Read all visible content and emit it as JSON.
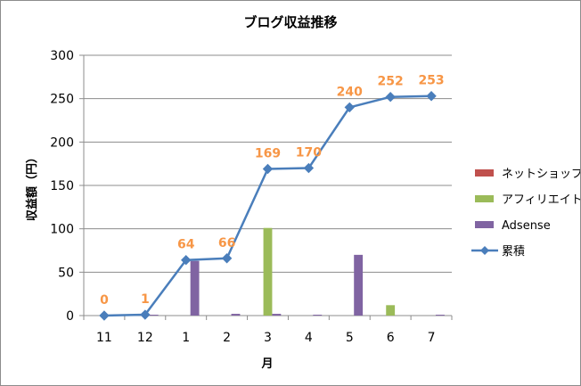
{
  "chart_data": {
    "type": "bar",
    "title": "ブログ収益推移",
    "xlabel": "月",
    "ylabel": "収益額（円）",
    "ylim": [
      0,
      300
    ],
    "yticks": [
      0,
      50,
      100,
      150,
      200,
      250,
      300
    ],
    "grid": "horizontal",
    "legend_position": "right",
    "categories": [
      "11",
      "12",
      "1",
      "2",
      "3",
      "4",
      "5",
      "6",
      "7"
    ],
    "series": [
      {
        "name": "ネットショップ",
        "type": "bar",
        "color": "#c0504d",
        "values": [
          0,
          0,
          0,
          0,
          0,
          0,
          0,
          0,
          0
        ]
      },
      {
        "name": "アフィリエイト",
        "type": "bar",
        "color": "#9bbb59",
        "values": [
          0,
          0,
          0,
          0,
          101,
          0,
          0,
          12,
          0
        ]
      },
      {
        "name": "Adsense",
        "type": "bar",
        "color": "#8064a2",
        "values": [
          0,
          1,
          63,
          2,
          2,
          1,
          70,
          0,
          1
        ]
      },
      {
        "name": "累積",
        "type": "line",
        "color": "#4a7ebb",
        "marker": "diamond",
        "values": [
          0,
          1,
          64,
          66,
          169,
          170,
          240,
          252,
          253
        ]
      }
    ],
    "data_labels": {
      "series": "累積",
      "color": "#f79646",
      "values": [
        "0",
        "1",
        "64",
        "66",
        "169",
        "170",
        "240",
        "252",
        "253"
      ]
    }
  }
}
